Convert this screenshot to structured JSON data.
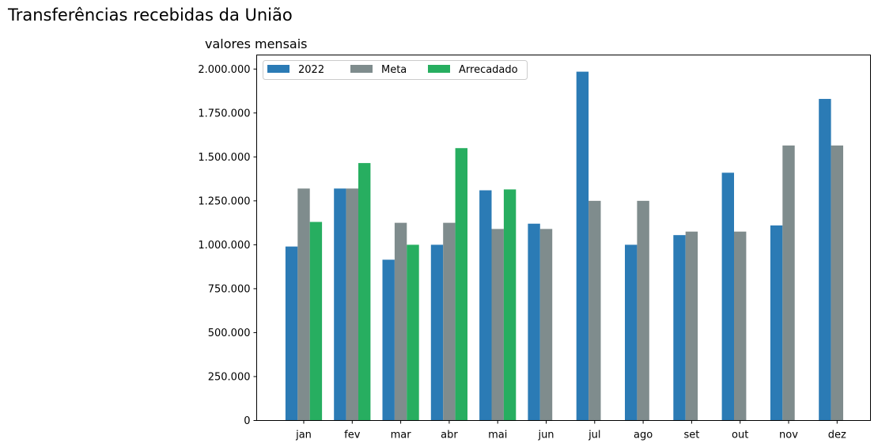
{
  "chart_data": {
    "type": "bar",
    "title": "Transferências recebidas da União",
    "subtitle": "valores mensais",
    "xlabel": "",
    "ylabel": "",
    "ylim": [
      0,
      2080000
    ],
    "yticks": [
      0,
      250000,
      500000,
      750000,
      1000000,
      1250000,
      1500000,
      1750000,
      2000000
    ],
    "ytick_labels": [
      "0",
      "250.000",
      "500.000",
      "750.000",
      "1.000.000",
      "1.250.000",
      "1.500.000",
      "1.750.000",
      "2.000.000"
    ],
    "grid": false,
    "legend_position": "top-left",
    "categories": [
      "jan",
      "fev",
      "mar",
      "abr",
      "mai",
      "jun",
      "jul",
      "ago",
      "set",
      "out",
      "nov",
      "dez"
    ],
    "series": [
      {
        "name": "2022",
        "color": "#2b7bb5",
        "values": [
          990000,
          1320000,
          915000,
          1000000,
          1310000,
          1120000,
          1985000,
          1000000,
          1055000,
          1410000,
          1110000,
          1830000
        ]
      },
      {
        "name": "Meta",
        "color": "#7f8c8d",
        "values": [
          1320000,
          1320000,
          1125000,
          1125000,
          1090000,
          1090000,
          1250000,
          1250000,
          1075000,
          1075000,
          1565000,
          1565000
        ]
      },
      {
        "name": "Arrecadado",
        "color": "#27ae60",
        "values": [
          1130000,
          1465000,
          1000000,
          1550000,
          1315000,
          null,
          null,
          null,
          null,
          null,
          null,
          null
        ]
      }
    ]
  }
}
